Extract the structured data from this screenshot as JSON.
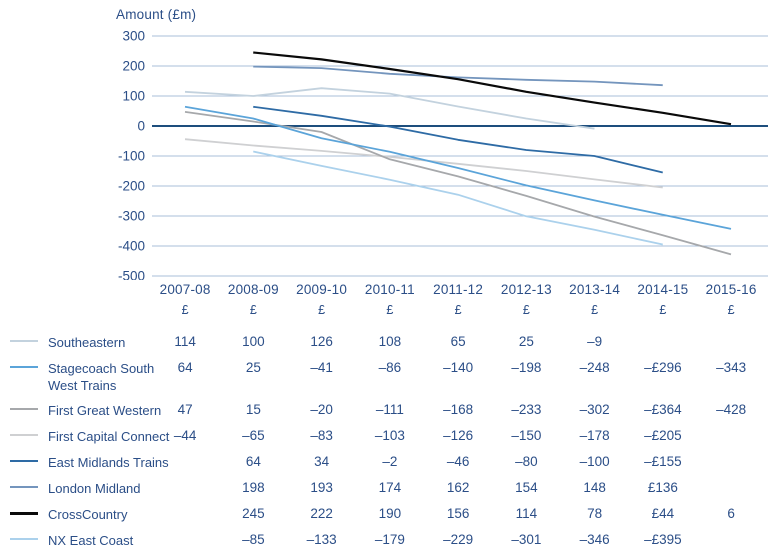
{
  "chart_data": {
    "type": "line",
    "title": "Amount (£m)",
    "ylabel": "Amount (£m)",
    "ylim": [
      -500,
      300
    ],
    "ytick_step": 100,
    "yticks": [
      300,
      200,
      100,
      0,
      -100,
      -200,
      -300,
      -400,
      -500
    ],
    "grid": "horizontal-only",
    "legend_position": "bottom-left-table",
    "categories": [
      "2007-08",
      "2008-09",
      "2009-10",
      "2010-11",
      "2011-12",
      "2012-13",
      "2013-14",
      "2014-15",
      "2015-16"
    ],
    "currency_symbol": "£",
    "series": [
      {
        "name": "Southeastern",
        "color": "#c3d2de",
        "values": [
          114,
          100,
          126,
          108,
          65,
          25,
          -9,
          null,
          null
        ],
        "display": [
          "114",
          "100",
          "126",
          "108",
          "65",
          "25",
          "–9",
          "",
          ""
        ]
      },
      {
        "name": "Stagecoach South West Trains",
        "name_lines": [
          "Stagecoach South",
          "West Trains"
        ],
        "color": "#5ba4d9",
        "values": [
          64,
          25,
          -41,
          -86,
          -140,
          -198,
          -248,
          -296,
          -343
        ],
        "display": [
          "64",
          "25",
          "–41",
          "–86",
          "–140",
          "–198",
          "–248",
          "–£296",
          "–343"
        ]
      },
      {
        "name": "First Great Western",
        "color": "#a6a8ab",
        "values": [
          47,
          15,
          -20,
          -111,
          -168,
          -233,
          -302,
          -364,
          -428
        ],
        "display": [
          "47",
          "15",
          "–20",
          "–111",
          "–168",
          "–233",
          "–302",
          "–£364",
          "–428"
        ]
      },
      {
        "name": "First Capital Connect",
        "color": "#cfd0d2",
        "values": [
          -44,
          -65,
          -83,
          -103,
          -126,
          -150,
          -178,
          -205,
          null
        ],
        "display": [
          "–44",
          "–65",
          "–83",
          "–103",
          "–126",
          "–150",
          "–178",
          "–£205",
          ""
        ]
      },
      {
        "name": "East Midlands Trains",
        "color": "#2e6ba5",
        "values": [
          null,
          64,
          34,
          -2,
          -46,
          -80,
          -100,
          -155,
          null
        ],
        "display": [
          "",
          "64",
          "34",
          "–2",
          "–46",
          "–80",
          "–100",
          "–£155",
          ""
        ]
      },
      {
        "name": "London Midland",
        "color": "#7495bd",
        "values": [
          null,
          198,
          193,
          174,
          162,
          154,
          148,
          136,
          null
        ],
        "display": [
          "",
          "198",
          "193",
          "174",
          "162",
          "154",
          "148",
          "£136",
          ""
        ]
      },
      {
        "name": "CrossCountry",
        "color": "#0a0a0a",
        "values": [
          null,
          245,
          222,
          190,
          156,
          114,
          78,
          44,
          6
        ],
        "display": [
          "",
          "245",
          "222",
          "190",
          "156",
          "114",
          "78",
          "£44",
          "6"
        ]
      },
      {
        "name": "NX East Coast",
        "color": "#abd1ec",
        "values": [
          null,
          -85,
          -133,
          -179,
          -229,
          -301,
          -346,
          -395,
          null
        ],
        "display": [
          "",
          "–85",
          "–133",
          "–179",
          "–229",
          "–301",
          "–346",
          "–£395",
          ""
        ]
      }
    ],
    "styles": {
      "background": "#ffffff",
      "text_color": "#2b4e87",
      "grid_color": "#aabfd9",
      "zero_line_color": "#1d4e7d"
    }
  }
}
